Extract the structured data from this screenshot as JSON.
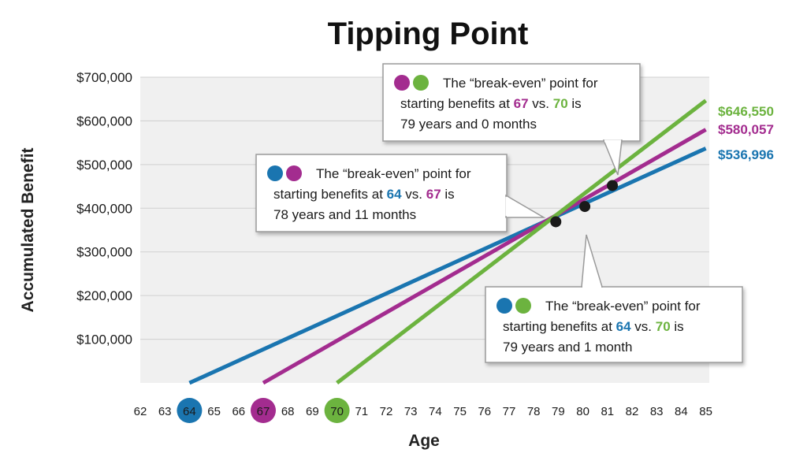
{
  "chart_data": {
    "type": "line",
    "title": "Tipping Point",
    "xlabel": "Age",
    "ylabel": "Accumulated Benefit",
    "xlim": [
      62,
      85
    ],
    "ylim": [
      0,
      700000
    ],
    "x_ticks": [
      "62",
      "63",
      "64",
      "65",
      "66",
      "67",
      "68",
      "69",
      "70",
      "71",
      "72",
      "73",
      "74",
      "75",
      "76",
      "77",
      "78",
      "79",
      "80",
      "81",
      "82",
      "83",
      "84",
      "85"
    ],
    "y_ticks": [
      {
        "value": 100000,
        "label": "$100,000"
      },
      {
        "value": 200000,
        "label": "$200,000"
      },
      {
        "value": 300000,
        "label": "$300,000"
      },
      {
        "value": 400000,
        "label": "$400,000"
      },
      {
        "value": 500000,
        "label": "$500,000"
      },
      {
        "value": 600000,
        "label": "$600,000"
      },
      {
        "value": 700000,
        "label": "$700,000"
      }
    ],
    "grid": true,
    "highlighted_ages": [
      {
        "age": "64",
        "color": "#1a75b0"
      },
      {
        "age": "67",
        "color": "#a32c8f"
      },
      {
        "age": "70",
        "color": "#6cb33f"
      }
    ],
    "series": [
      {
        "start_age": 64,
        "color": "#1a75b0",
        "points": [
          [
            64,
            0
          ],
          [
            85,
            536996
          ]
        ],
        "end_label": "$536,996"
      },
      {
        "start_age": 67,
        "color": "#a32c8f",
        "points": [
          [
            67,
            0
          ],
          [
            85,
            580057
          ]
        ],
        "end_label": "$580,057"
      },
      {
        "start_age": 70,
        "color": "#6cb33f",
        "points": [
          [
            70,
            0
          ],
          [
            85,
            646550
          ]
        ],
        "end_label": "$646,550"
      }
    ],
    "intersections": [
      {
        "x": 78.9,
        "y": 369000
      },
      {
        "x": 80.08,
        "y": 404000
      },
      {
        "x": 81.2,
        "y": 452000
      }
    ],
    "annotations": [
      {
        "id": "bottom",
        "dot_colors": [
          "#1a75b0",
          "#6cb33f"
        ],
        "lines": [
          [
            {
              "t": "The “break-even” point for"
            }
          ],
          [
            {
              "t": "starting benefits at "
            },
            {
              "t": "64",
              "c": "#1a75b0",
              "b": true
            },
            {
              "t": " vs. "
            },
            {
              "t": "70",
              "c": "#6cb33f",
              "b": true
            },
            {
              "t": " is"
            }
          ],
          [
            {
              "t": "79 years and 1 month"
            }
          ]
        ]
      },
      {
        "id": "left",
        "dot_colors": [
          "#1a75b0",
          "#a32c8f"
        ],
        "lines": [
          [
            {
              "t": "The “break-even” point for"
            }
          ],
          [
            {
              "t": "starting benefits at "
            },
            {
              "t": "64",
              "c": "#1a75b0",
              "b": true
            },
            {
              "t": " vs. "
            },
            {
              "t": "67",
              "c": "#a32c8f",
              "b": true
            },
            {
              "t": " is"
            }
          ],
          [
            {
              "t": "78 years and 11 months"
            }
          ]
        ]
      },
      {
        "id": "top",
        "dot_colors": [
          "#a32c8f",
          "#6cb33f"
        ],
        "lines": [
          [
            {
              "t": "The “break-even” point for"
            }
          ],
          [
            {
              "t": "starting benefits at "
            },
            {
              "t": "67",
              "c": "#a32c8f",
              "b": true
            },
            {
              "t": " vs. "
            },
            {
              "t": "70",
              "c": "#6cb33f",
              "b": true
            },
            {
              "t": " is"
            }
          ],
          [
            {
              "t": "79 years and 0 months"
            }
          ]
        ]
      }
    ]
  }
}
